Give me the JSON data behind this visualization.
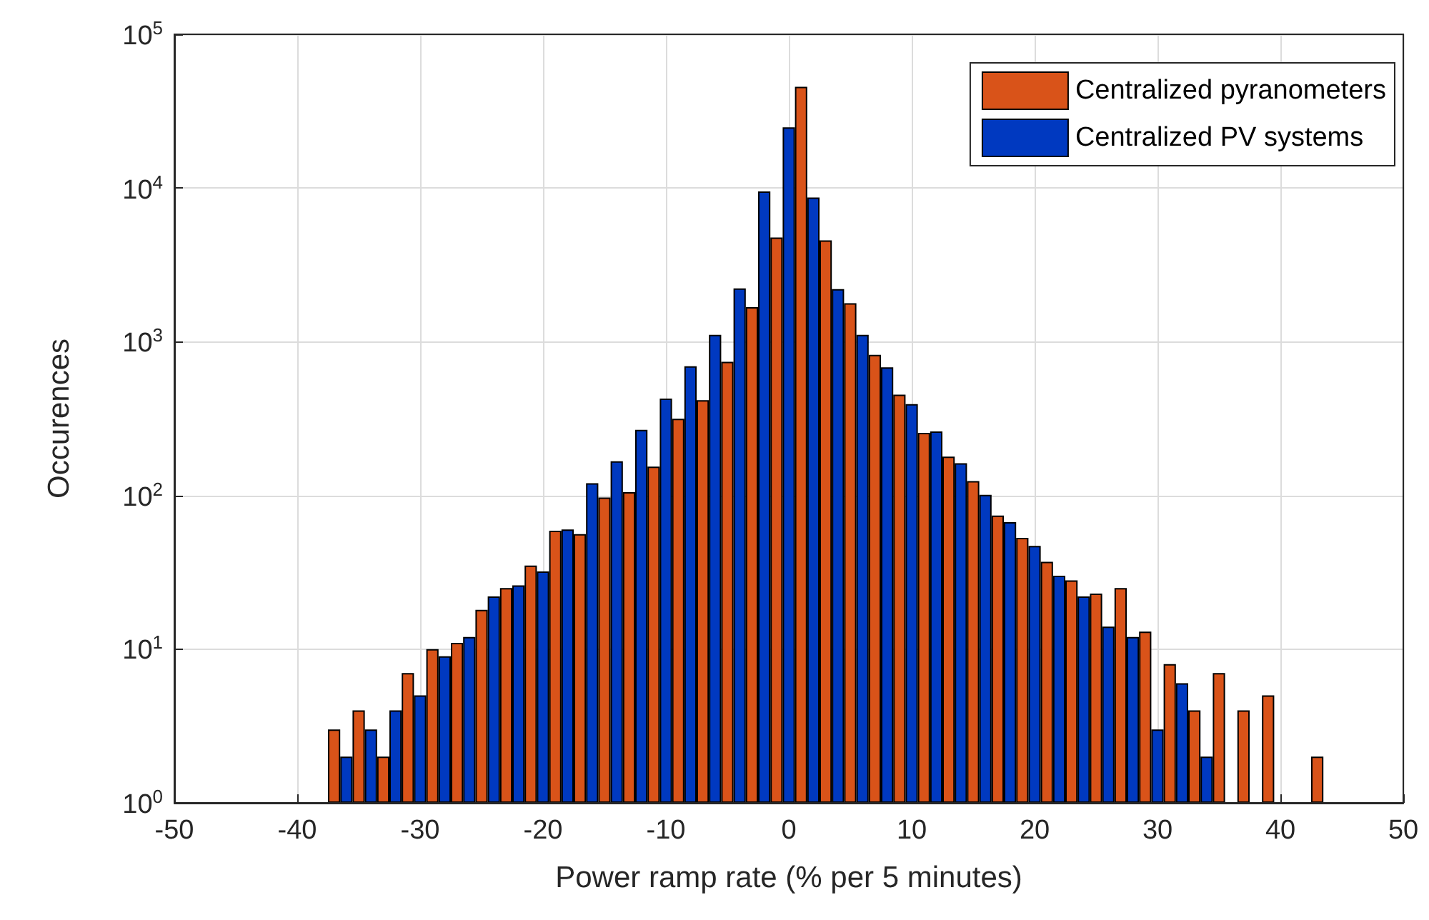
{
  "chart_data": {
    "type": "bar",
    "xlabel": "Power ramp rate (% per 5 minutes)",
    "ylabel": "Occurences",
    "series": [
      {
        "name": "Centralized pyranometers",
        "color": "#d95319",
        "x": [
          -37,
          -35,
          -33,
          -31,
          -29,
          -27,
          -25,
          -23,
          -21,
          -19,
          -17,
          -15,
          -13,
          -11,
          -9,
          -7,
          -5,
          -3,
          -1,
          1,
          3,
          5,
          7,
          9,
          11,
          13,
          15,
          17,
          19,
          21,
          23,
          25,
          27,
          29,
          31,
          33,
          35,
          37,
          39,
          41,
          43
        ],
        "values": [
          3,
          4,
          2,
          7,
          10,
          11,
          18,
          25,
          35,
          59,
          56,
          97,
          105,
          154,
          315,
          416,
          740,
          1680,
          4760,
          45500,
          4570,
          1780,
          822,
          452,
          255,
          179,
          124,
          74,
          53,
          37,
          28,
          23,
          25,
          13,
          8,
          4,
          7,
          4,
          5,
          null,
          2
        ]
      },
      {
        "name": "Centralized PV systems",
        "color": "#0039c0",
        "x": [
          -36,
          -34,
          -32,
          -30,
          -28,
          -26,
          -24,
          -22,
          -20,
          -18,
          -16,
          -14,
          -12,
          -10,
          -8,
          -6,
          -4,
          -2,
          0,
          2,
          4,
          6,
          8,
          10,
          12,
          14,
          16,
          18,
          20,
          22,
          24,
          26,
          28,
          30,
          32,
          34
        ],
        "values": [
          2,
          3,
          4,
          5,
          9,
          12,
          22,
          26,
          32,
          60,
          120,
          167,
          267,
          427,
          692,
          1110,
          2220,
          9490,
          24800,
          8670,
          2200,
          1110,
          681,
          393,
          261,
          162,
          101,
          67,
          47,
          30,
          22,
          14,
          12,
          3,
          6,
          2
        ]
      }
    ],
    "xlim": [
      -50,
      50
    ],
    "xticks": [
      -50,
      -40,
      -30,
      -20,
      -10,
      0,
      10,
      20,
      30,
      40,
      50
    ],
    "ylim": [
      1,
      100000
    ],
    "yticks": [
      {
        "value": 1,
        "label": "10$^{0}$"
      },
      {
        "value": 10,
        "label": "10$^{1}$"
      },
      {
        "value": 100,
        "label": "10$^{2}$"
      },
      {
        "value": 1000,
        "label": "10$^{3}$"
      },
      {
        "value": 10000,
        "label": "10$^{4}$"
      },
      {
        "value": 100000,
        "label": "10$^{5}$"
      }
    ],
    "log": "y",
    "grid": true,
    "legend": "top right"
  }
}
